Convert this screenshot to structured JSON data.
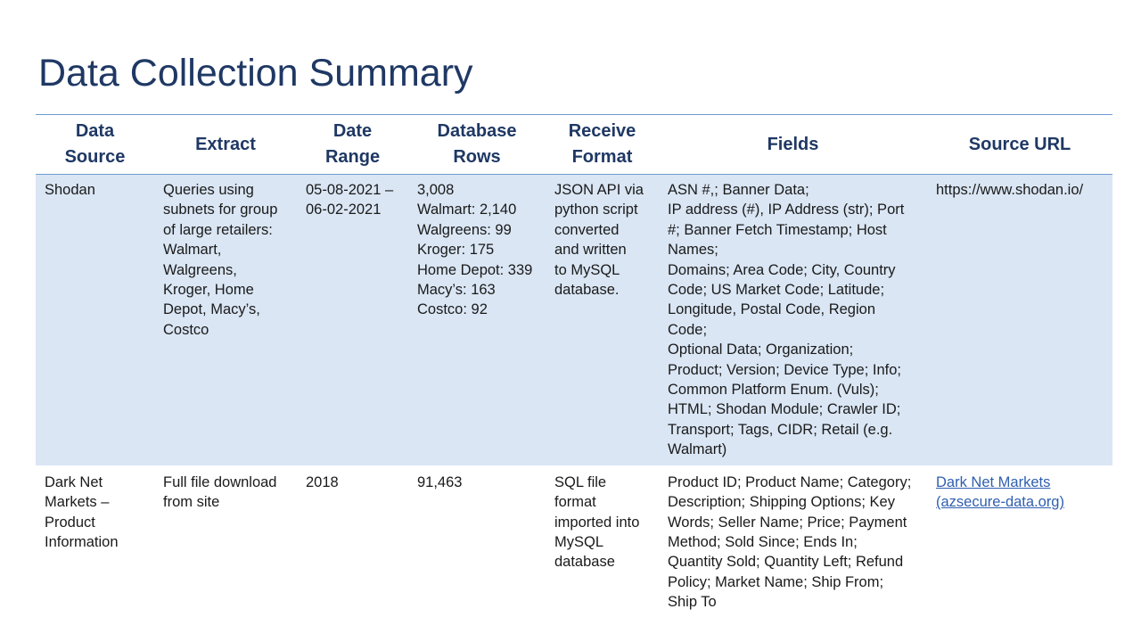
{
  "slide": {
    "title": "Data Collection Summary"
  },
  "table": {
    "headers": [
      {
        "lines": [
          "Data",
          "Source"
        ]
      },
      {
        "lines": [
          "Extract"
        ]
      },
      {
        "lines": [
          "Date",
          "Range"
        ]
      },
      {
        "lines": [
          "Database",
          "Rows"
        ]
      },
      {
        "lines": [
          "Receive",
          "Format"
        ]
      },
      {
        "lines": [
          "Fields"
        ]
      },
      {
        "lines": [
          "Source URL"
        ]
      }
    ],
    "rows": [
      {
        "data_source": [
          "Shodan"
        ],
        "extract": [
          "Queries using",
          "subnets for group",
          "of large retailers:",
          "Walmart,",
          "Walgreens,",
          "Kroger, Home",
          "Depot, Macy’s,",
          "Costco"
        ],
        "date_range": [
          "05-08-2021 –",
          "06-02-2021"
        ],
        "database_rows": [
          "3,008",
          "Walmart: 2,140",
          "Walgreens: 99",
          "Kroger: 175",
          "Home Depot: 339",
          "Macy’s: 163",
          "Costco:  92"
        ],
        "receive_format": [
          "JSON API via",
          "python script",
          "converted",
          "and written",
          "to MySQL",
          "database."
        ],
        "fields": [
          "ASN #,; Banner Data;",
          "IP address (#), IP Address (str); Port",
          "#;  Banner Fetch Timestamp; Host",
          "Names;",
          "Domains; Area Code; City, Country",
          "Code;  US Market Code; Latitude;",
          "Longitude, Postal Code, Region",
          "Code;",
          "Optional Data; Organization;",
          "Product; Version; Device Type; Info;",
          "Common Platform Enum. (Vuls);",
          "HTML; Shodan Module; Crawler ID;",
          "Transport; Tags, CIDR; Retail (e.g.",
          "Walmart)"
        ],
        "source_url": [
          "https://www.shodan.io/"
        ]
      },
      {
        "data_source": [
          "Dark Net",
          "Markets –",
          "Product",
          "Information"
        ],
        "extract": [
          "Full file download",
          "from site"
        ],
        "date_range": [
          "2018"
        ],
        "database_rows": [
          "91,463"
        ],
        "receive_format": [
          "SQL file",
          "format",
          "imported into",
          "MySQL",
          "database"
        ],
        "fields": [
          "Product ID; Product Name; Category;",
          "Description; Shipping Options; Key",
          "Words; Seller Name; Price; Payment",
          "Method; Sold Since; Ends In;",
          "Quantity Sold; Quantity Left; Refund",
          "Policy; Market Name; Ship From;",
          "Ship To"
        ],
        "source_url": [
          "Dark Net Markets",
          "(azsecure-data.org)"
        ]
      }
    ]
  },
  "colors": {
    "title": "#1f3864",
    "header_text": "#1f3864",
    "header_rule": "#6f9bd1",
    "shaded_row": "#dae6f4",
    "link": "#2f5fb0"
  }
}
